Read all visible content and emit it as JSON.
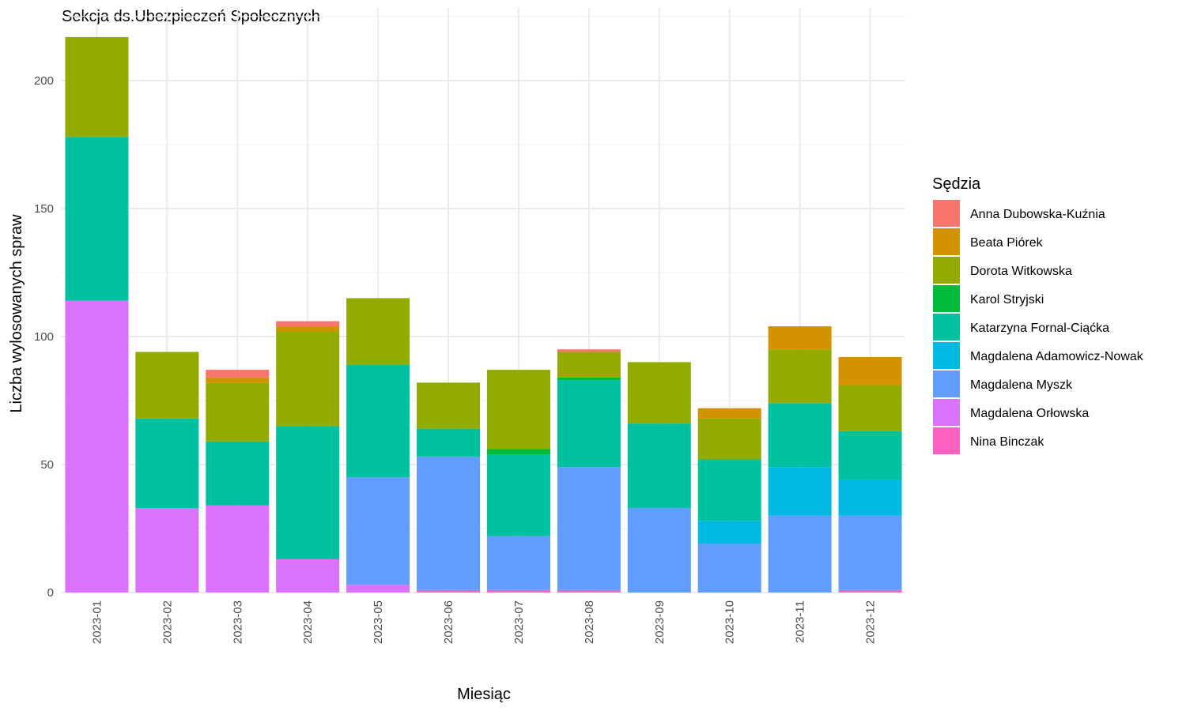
{
  "chart_data": {
    "type": "bar",
    "stacked": true,
    "title": "Sekcja ds.Ubezpieczeń Społecznych",
    "xlabel": "Miesiąc",
    "ylabel": "Liczba wylosowanych spraw",
    "ylim": [
      0,
      220
    ],
    "yticks": [
      0,
      50,
      100,
      150,
      200
    ],
    "grid": true,
    "legend_title": "Sędzia",
    "legend_position": "right",
    "categories": [
      "2023-01",
      "2023-02",
      "2023-03",
      "2023-04",
      "2023-05",
      "2023-06",
      "2023-07",
      "2023-08",
      "2023-09",
      "2023-10",
      "2023-11",
      "2023-12"
    ],
    "series": [
      {
        "name": "Anna Dubowska-Kuźnia",
        "color": "#F8766D",
        "values": [
          0,
          0,
          3,
          2,
          0,
          0,
          0,
          1,
          0,
          0,
          0,
          0
        ]
      },
      {
        "name": "Beata Piórek",
        "color": "#D39200",
        "values": [
          0,
          0,
          2,
          2,
          0,
          0,
          0,
          0,
          0,
          4,
          9,
          11
        ]
      },
      {
        "name": "Dorota Witkowska",
        "color": "#93AA00",
        "values": [
          39,
          26,
          23,
          37,
          26,
          18,
          31,
          10,
          24,
          16,
          21,
          18
        ]
      },
      {
        "name": "Karol Stryjski",
        "color": "#00BA38",
        "values": [
          0,
          0,
          0,
          0,
          0,
          0,
          2,
          1,
          0,
          0,
          0,
          0
        ]
      },
      {
        "name": "Katarzyna Fornal-Ciąćka",
        "color": "#00C19F",
        "values": [
          64,
          35,
          25,
          52,
          44,
          11,
          32,
          34,
          33,
          24,
          25,
          19
        ]
      },
      {
        "name": "Magdalena Adamowicz-Nowak",
        "color": "#00B9E3",
        "values": [
          0,
          0,
          0,
          0,
          0,
          0,
          0,
          0,
          0,
          9,
          19,
          14
        ]
      },
      {
        "name": "Magdalena Myszk",
        "color": "#619CFF",
        "values": [
          0,
          0,
          0,
          0,
          42,
          52,
          21,
          48,
          33,
          19,
          30,
          29
        ]
      },
      {
        "name": "Magdalena Orłowska",
        "color": "#DB72FB",
        "values": [
          114,
          33,
          34,
          13,
          3,
          0,
          0,
          0,
          0,
          0,
          0,
          0
        ]
      },
      {
        "name": "Nina Binczak",
        "color": "#FF61C3",
        "values": [
          0,
          0,
          0,
          0,
          0,
          1,
          1,
          1,
          0,
          0,
          0,
          1
        ]
      }
    ]
  }
}
